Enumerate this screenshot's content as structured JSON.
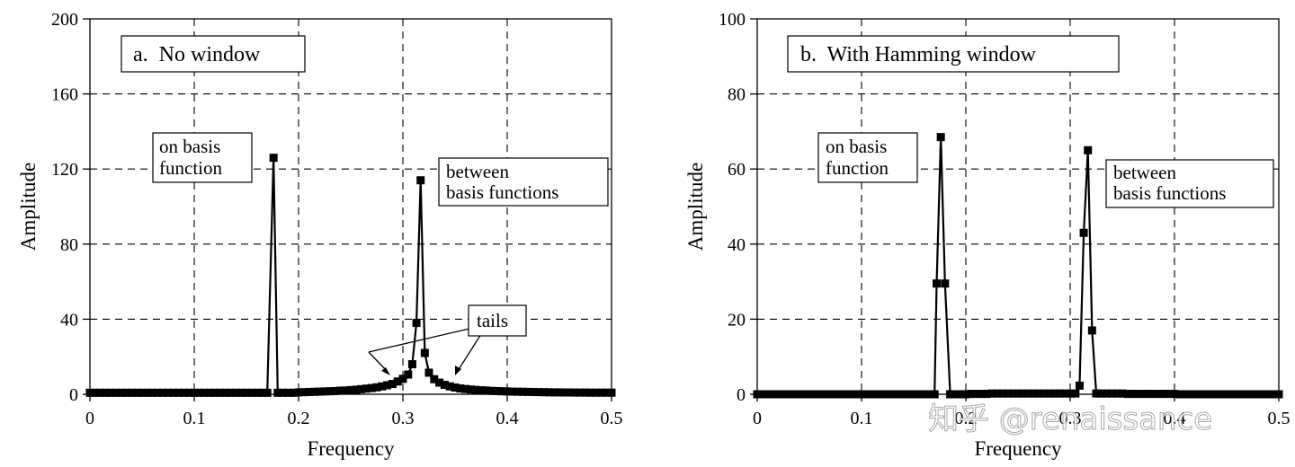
{
  "watermark": "知乎 @renaissance",
  "chart_data": [
    {
      "type": "line",
      "panel_label": "a.  No window",
      "xlabel": "Frequency",
      "ylabel": "Amplitude",
      "xlim": [
        0,
        0.5
      ],
      "ylim": [
        0,
        200
      ],
      "xticks": [
        0,
        0.1,
        0.2,
        0.3,
        0.4,
        0.5
      ],
      "xtick_labels": [
        "0",
        "0.1",
        "0.2",
        "0.3",
        "0.4",
        "0.5"
      ],
      "yticks": [
        0,
        40,
        80,
        120,
        160,
        200
      ],
      "ytick_labels": [
        "0",
        "40",
        "80",
        "120",
        "160",
        "200"
      ],
      "grid": true,
      "series": [
        {
          "points": [
            [
              0.0,
              0.8
            ],
            [
              0.005,
              0.8
            ],
            [
              0.01,
              0.8
            ],
            [
              0.015,
              0.8
            ],
            [
              0.02,
              0.8
            ],
            [
              0.025,
              0.8
            ],
            [
              0.03,
              0.8
            ],
            [
              0.035,
              0.8
            ],
            [
              0.04,
              0.8
            ],
            [
              0.045,
              0.8
            ],
            [
              0.05,
              0.8
            ],
            [
              0.055,
              0.8
            ],
            [
              0.06,
              0.8
            ],
            [
              0.065,
              0.8
            ],
            [
              0.07,
              0.8
            ],
            [
              0.075,
              0.8
            ],
            [
              0.08,
              0.8
            ],
            [
              0.085,
              0.8
            ],
            [
              0.09,
              0.8
            ],
            [
              0.095,
              0.8
            ],
            [
              0.1,
              0.8
            ],
            [
              0.105,
              0.8
            ],
            [
              0.11,
              0.8
            ],
            [
              0.115,
              0.8
            ],
            [
              0.12,
              0.8
            ],
            [
              0.125,
              0.8
            ],
            [
              0.13,
              0.8
            ],
            [
              0.135,
              0.8
            ],
            [
              0.14,
              0.8
            ],
            [
              0.145,
              0.8
            ],
            [
              0.15,
              0.8
            ],
            [
              0.155,
              0.8
            ],
            [
              0.16,
              0.8
            ],
            [
              0.165,
              0.8
            ],
            [
              0.17,
              0.8
            ],
            [
              0.176,
              126
            ],
            [
              0.18,
              0.8
            ],
            [
              0.185,
              0.8
            ],
            [
              0.19,
              0.8
            ],
            [
              0.195,
              0.8
            ],
            [
              0.2,
              1.0
            ],
            [
              0.205,
              1.1
            ],
            [
              0.21,
              1.2
            ],
            [
              0.215,
              1.3
            ],
            [
              0.22,
              1.4
            ],
            [
              0.225,
              1.5
            ],
            [
              0.23,
              1.6
            ],
            [
              0.235,
              1.7
            ],
            [
              0.24,
              1.9
            ],
            [
              0.245,
              2.0
            ],
            [
              0.25,
              2.2
            ],
            [
              0.255,
              2.4
            ],
            [
              0.26,
              2.7
            ],
            [
              0.265,
              3.0
            ],
            [
              0.27,
              3.3
            ],
            [
              0.275,
              3.7
            ],
            [
              0.28,
              4.2
            ],
            [
              0.285,
              4.8
            ],
            [
              0.29,
              5.5
            ],
            [
              0.295,
              6.8
            ],
            [
              0.3,
              8.2
            ],
            [
              0.305,
              10.5
            ],
            [
              0.309,
              16
            ],
            [
              0.313,
              38
            ],
            [
              0.317,
              114
            ],
            [
              0.321,
              22
            ],
            [
              0.325,
              11.5
            ],
            [
              0.33,
              8.0
            ],
            [
              0.335,
              6.2
            ],
            [
              0.34,
              5.0
            ],
            [
              0.345,
              4.2
            ],
            [
              0.35,
              3.6
            ],
            [
              0.355,
              3.1
            ],
            [
              0.36,
              2.8
            ],
            [
              0.365,
              2.5
            ],
            [
              0.37,
              2.3
            ],
            [
              0.375,
              2.1
            ],
            [
              0.38,
              2.0
            ],
            [
              0.385,
              1.8
            ],
            [
              0.39,
              1.7
            ],
            [
              0.395,
              1.6
            ],
            [
              0.4,
              1.5
            ],
            [
              0.405,
              1.4
            ],
            [
              0.41,
              1.35
            ],
            [
              0.415,
              1.3
            ],
            [
              0.42,
              1.25
            ],
            [
              0.425,
              1.2
            ],
            [
              0.43,
              1.15
            ],
            [
              0.435,
              1.1
            ],
            [
              0.44,
              1.05
            ],
            [
              0.445,
              1.0
            ],
            [
              0.45,
              1.0
            ],
            [
              0.455,
              0.95
            ],
            [
              0.46,
              0.95
            ],
            [
              0.465,
              0.9
            ],
            [
              0.47,
              0.9
            ],
            [
              0.475,
              0.9
            ],
            [
              0.48,
              0.85
            ],
            [
              0.485,
              0.85
            ],
            [
              0.49,
              0.85
            ],
            [
              0.495,
              0.85
            ],
            [
              0.5,
              0.85
            ]
          ]
        }
      ],
      "annotations": {
        "on_basis_line1": "on basis",
        "on_basis_line2": "function",
        "between_line1": "between",
        "between_line2": "basis functions",
        "tails": "tails"
      }
    },
    {
      "type": "line",
      "panel_label": "b.  With Hamming window",
      "xlabel": "Frequency",
      "ylabel": "Amplitude",
      "xlim": [
        0,
        0.5
      ],
      "ylim": [
        0,
        100
      ],
      "xticks": [
        0,
        0.1,
        0.2,
        0.3,
        0.4,
        0.5
      ],
      "xtick_labels": [
        "0",
        "0.1",
        "0.2",
        "0.3",
        "0.4",
        "0.5"
      ],
      "yticks": [
        0,
        20,
        40,
        60,
        80,
        100
      ],
      "ytick_labels": [
        "0",
        "20",
        "40",
        "60",
        "80",
        "100"
      ],
      "grid": true,
      "series": [
        {
          "points": [
            [
              0.0,
              0
            ],
            [
              0.005,
              0
            ],
            [
              0.01,
              0
            ],
            [
              0.015,
              0
            ],
            [
              0.02,
              0
            ],
            [
              0.025,
              0
            ],
            [
              0.03,
              0
            ],
            [
              0.035,
              0
            ],
            [
              0.04,
              0
            ],
            [
              0.045,
              0
            ],
            [
              0.05,
              0
            ],
            [
              0.055,
              0
            ],
            [
              0.06,
              0
            ],
            [
              0.065,
              0
            ],
            [
              0.07,
              0
            ],
            [
              0.075,
              0
            ],
            [
              0.08,
              0
            ],
            [
              0.085,
              0
            ],
            [
              0.09,
              0
            ],
            [
              0.095,
              0
            ],
            [
              0.1,
              0
            ],
            [
              0.105,
              0
            ],
            [
              0.11,
              0
            ],
            [
              0.115,
              0
            ],
            [
              0.12,
              0
            ],
            [
              0.125,
              0
            ],
            [
              0.13,
              0
            ],
            [
              0.135,
              0
            ],
            [
              0.14,
              0
            ],
            [
              0.145,
              0
            ],
            [
              0.15,
              0
            ],
            [
              0.155,
              0
            ],
            [
              0.16,
              0
            ],
            [
              0.165,
              0
            ],
            [
              0.17,
              0
            ],
            [
              0.172,
              29.5
            ],
            [
              0.176,
              68.5
            ],
            [
              0.18,
              29.5
            ],
            [
              0.185,
              0
            ],
            [
              0.19,
              0
            ],
            [
              0.195,
              0
            ],
            [
              0.2,
              0
            ],
            [
              0.205,
              0.1
            ],
            [
              0.21,
              0.1
            ],
            [
              0.215,
              0.1
            ],
            [
              0.22,
              0.1
            ],
            [
              0.225,
              0.2
            ],
            [
              0.23,
              0.2
            ],
            [
              0.235,
              0.2
            ],
            [
              0.24,
              0.2
            ],
            [
              0.245,
              0.2
            ],
            [
              0.25,
              0.2
            ],
            [
              0.255,
              0.2
            ],
            [
              0.26,
              0.2
            ],
            [
              0.265,
              0.2
            ],
            [
              0.27,
              0.2
            ],
            [
              0.275,
              0.2
            ],
            [
              0.28,
              0.2
            ],
            [
              0.285,
              0.2
            ],
            [
              0.29,
              0.2
            ],
            [
              0.295,
              0.2
            ],
            [
              0.3,
              0.2
            ],
            [
              0.305,
              0.2
            ],
            [
              0.309,
              2.3
            ],
            [
              0.313,
              43
            ],
            [
              0.317,
              65
            ],
            [
              0.321,
              17
            ],
            [
              0.325,
              0.2
            ],
            [
              0.33,
              0.2
            ],
            [
              0.335,
              0.2
            ],
            [
              0.34,
              0.2
            ],
            [
              0.345,
              0.2
            ],
            [
              0.35,
              0.2
            ],
            [
              0.355,
              0.1
            ],
            [
              0.36,
              0.1
            ],
            [
              0.365,
              0.1
            ],
            [
              0.37,
              0.1
            ],
            [
              0.375,
              0.1
            ],
            [
              0.38,
              0.1
            ],
            [
              0.385,
              0.1
            ],
            [
              0.39,
              0.1
            ],
            [
              0.395,
              0.1
            ],
            [
              0.4,
              0.1
            ],
            [
              0.405,
              0
            ],
            [
              0.41,
              0
            ],
            [
              0.415,
              0
            ],
            [
              0.42,
              0
            ],
            [
              0.425,
              0
            ],
            [
              0.43,
              0
            ],
            [
              0.435,
              0
            ],
            [
              0.44,
              0
            ],
            [
              0.445,
              0
            ],
            [
              0.45,
              0
            ],
            [
              0.455,
              0
            ],
            [
              0.46,
              0
            ],
            [
              0.465,
              0
            ],
            [
              0.47,
              0
            ],
            [
              0.475,
              0
            ],
            [
              0.48,
              0
            ],
            [
              0.485,
              0
            ],
            [
              0.49,
              0
            ],
            [
              0.495,
              0
            ],
            [
              0.5,
              0
            ]
          ]
        }
      ],
      "annotations": {
        "on_basis_line1": "on basis",
        "on_basis_line2": "function",
        "between_line1": "between",
        "between_line2": "basis functions"
      }
    }
  ]
}
